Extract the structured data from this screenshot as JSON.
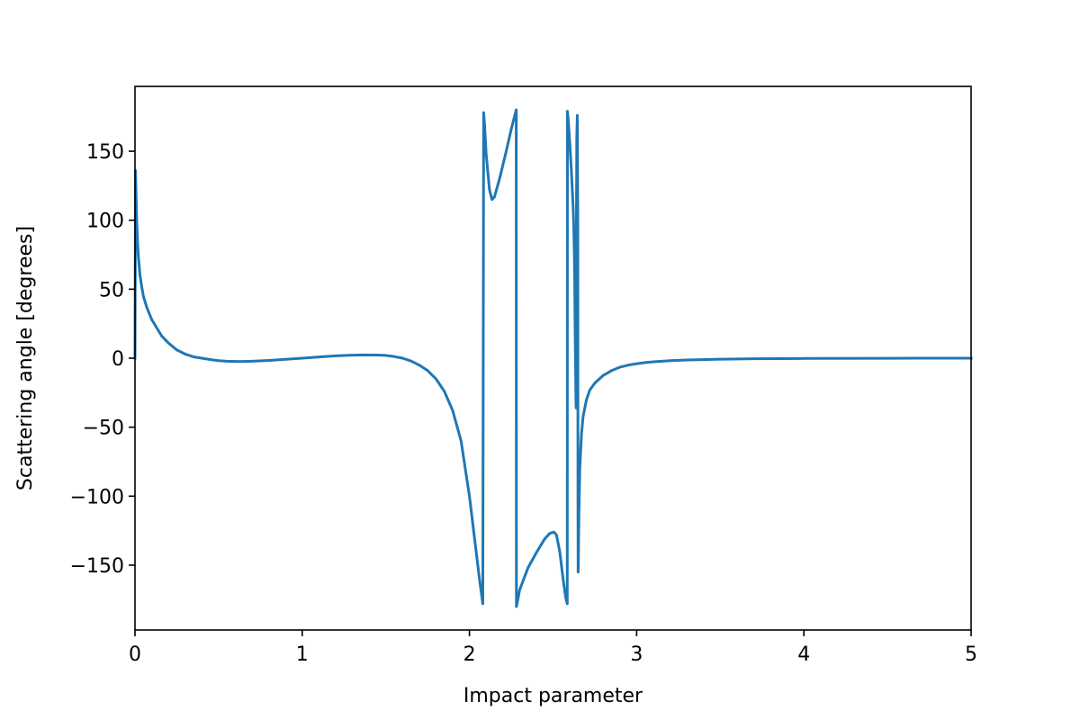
{
  "chart_data": {
    "type": "line",
    "title": "",
    "xlabel": "Impact parameter",
    "ylabel": "Scattering angle [degrees]",
    "xlim": [
      0,
      5
    ],
    "ylim": [
      -197,
      197
    ],
    "grid": false,
    "legend": "none",
    "x_ticks": [
      0,
      1,
      2,
      3,
      4,
      5
    ],
    "x_tick_labels": [
      "0",
      "1",
      "2",
      "3",
      "4",
      "5"
    ],
    "y_ticks": [
      -150,
      -100,
      -50,
      0,
      50,
      100,
      150
    ],
    "y_tick_labels": [
      "−150",
      "−100",
      "−50",
      "0",
      "50",
      "100",
      "150"
    ],
    "series": [
      {
        "color": "#1f77b4",
        "x": [
          0.0,
          0.003,
          0.006,
          0.01,
          0.015,
          0.02,
          0.03,
          0.04,
          0.05,
          0.07,
          0.1,
          0.13,
          0.16,
          0.2,
          0.25,
          0.3,
          0.35,
          0.4,
          0.45,
          0.5,
          0.55,
          0.6,
          0.65,
          0.7,
          0.8,
          0.9,
          1.0,
          1.1,
          1.2,
          1.3,
          1.38,
          1.45,
          1.5,
          1.55,
          1.6,
          1.65,
          1.7,
          1.75,
          1.8,
          1.85,
          1.9,
          1.95,
          2.0,
          2.03,
          2.06,
          2.08,
          2.085,
          2.09,
          2.1,
          2.12,
          2.135,
          2.15,
          2.18,
          2.22,
          2.25,
          2.28,
          2.281,
          2.285,
          2.3,
          2.35,
          2.4,
          2.45,
          2.48,
          2.505,
          2.52,
          2.54,
          2.56,
          2.575,
          2.585,
          2.586,
          2.59,
          2.6,
          2.61,
          2.62,
          2.625,
          2.628,
          2.63,
          2.632,
          2.635,
          2.637,
          2.638,
          2.639,
          2.64,
          2.642,
          2.645,
          2.648,
          2.649,
          2.65,
          2.651,
          2.655,
          2.66,
          2.67,
          2.68,
          2.7,
          2.72,
          2.75,
          2.8,
          2.85,
          2.9,
          2.95,
          3.0,
          3.05,
          3.1,
          3.2,
          3.3,
          3.5,
          3.7,
          4.0,
          4.5,
          5.0
        ],
        "y": [
          0,
          136,
          120,
          100,
          85,
          74,
          60,
          52,
          45,
          37,
          28,
          22,
          16,
          11,
          6,
          3,
          1,
          0,
          -1,
          -1.8,
          -2.2,
          -2.4,
          -2.4,
          -2.2,
          -1.6,
          -0.8,
          0,
          0.9,
          1.7,
          2.2,
          2.4,
          2.3,
          2.0,
          1.2,
          0,
          -2,
          -5,
          -9,
          -15,
          -24,
          -38,
          -60,
          -100,
          -130,
          -160,
          -178,
          178,
          170,
          148,
          122,
          115,
          117,
          130,
          150,
          166,
          180,
          -180,
          -178,
          -168,
          -152,
          -141,
          -131,
          -127,
          -126,
          -128,
          -140,
          -160,
          -173,
          -178,
          179,
          174,
          156,
          135,
          110,
          90,
          70,
          50,
          20,
          -10,
          -30,
          -36,
          0,
          100,
          160,
          176,
          100,
          -100,
          -155,
          -150,
          -110,
          -80,
          -55,
          -42,
          -30,
          -23,
          -18,
          -12.5,
          -9,
          -6.5,
          -5,
          -4,
          -3.2,
          -2.6,
          -1.8,
          -1.3,
          -0.7,
          -0.4,
          -0.2,
          -0.06,
          0
        ]
      }
    ]
  }
}
